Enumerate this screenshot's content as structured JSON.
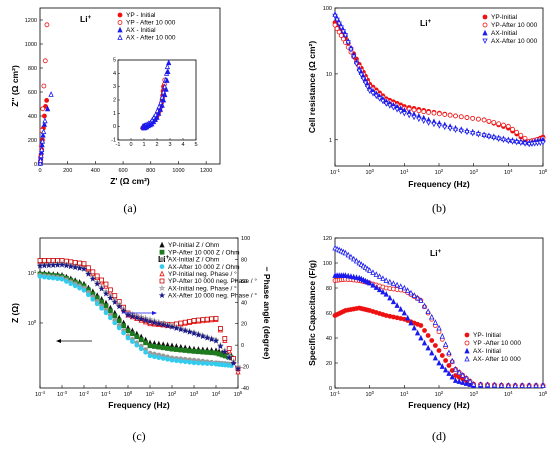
{
  "colors": {
    "red": "#ee1111",
    "blue": "#1a1aee",
    "black": "#111111",
    "green": "#1f7a1f",
    "gray": "#9a9a9a",
    "cyan": "#33ccee",
    "navy": "#1a1a8a",
    "darkred": "#cc0000"
  },
  "chart_data": [
    {
      "panel": "(a)",
      "type": "scatter",
      "ion_label": "Li",
      "ion_superscript": "+",
      "xlabel": "Z' (Ω cm²)",
      "ylabel": "Z'' (Ω cm²)",
      "xlim": [
        0,
        1300
      ],
      "ylim": [
        0,
        1300
      ],
      "xticks": [
        0,
        200,
        400,
        600,
        800,
        1000,
        1200
      ],
      "yticks": [
        0,
        200,
        400,
        600,
        800,
        1000,
        1200
      ],
      "legend_position": "top-left",
      "series": [
        {
          "name": "YP - Initial",
          "marker": "circle-filled",
          "color": "red",
          "x": [
            1,
            2,
            3,
            5,
            8,
            12,
            18,
            25,
            32,
            40,
            48
          ],
          "y": [
            5,
            10,
            25,
            50,
            80,
            120,
            200,
            300,
            400,
            480,
            530
          ]
        },
        {
          "name": "YP - After 10 000",
          "marker": "circle-open",
          "color": "red",
          "x": [
            2,
            5,
            9,
            14,
            20,
            28,
            38,
            50
          ],
          "y": [
            10,
            60,
            150,
            280,
            460,
            650,
            860,
            1160
          ]
        },
        {
          "name": "AX - Initial",
          "marker": "triangle-filled",
          "color": "blue",
          "x": [
            1,
            3,
            6,
            10,
            15,
            22,
            32,
            55
          ],
          "y": [
            5,
            20,
            50,
            100,
            160,
            240,
            330,
            460
          ]
        },
        {
          "name": "AX - After 10 000",
          "marker": "triangle-open",
          "color": "blue",
          "x": [
            2,
            4,
            8,
            12,
            18,
            26,
            36,
            80
          ],
          "y": [
            8,
            30,
            70,
            120,
            190,
            270,
            360,
            580
          ]
        }
      ],
      "inset": {
        "xlim": [
          -1,
          5
        ],
        "ylim": [
          -1,
          5
        ],
        "xticks": [
          -1,
          0,
          1,
          2,
          3,
          4,
          5
        ],
        "yticks": [
          -1,
          0,
          1,
          2,
          3,
          4,
          5
        ],
        "series": [
          {
            "marker": "circle-open",
            "color": "red",
            "x": [
              1.0,
              1.2,
              1.6,
              2.0,
              2.3,
              2.5,
              2.6
            ],
            "y": [
              0.0,
              0.1,
              0.3,
              0.8,
              1.5,
              2.5,
              3.5
            ]
          },
          {
            "marker": "circle-filled",
            "color": "red",
            "x": [
              0.9,
              1.1,
              1.5,
              1.9,
              2.2,
              2.4,
              2.5
            ],
            "y": [
              -0.1,
              0.0,
              0.2,
              0.6,
              1.2,
              2.0,
              3.0
            ]
          },
          {
            "marker": "triangle-open",
            "color": "blue",
            "x": [
              0.9,
              1.1,
              1.5,
              1.9,
              2.3,
              2.6,
              2.8
            ],
            "y": [
              0.0,
              0.1,
              0.3,
              0.9,
              1.8,
              3.0,
              4.5
            ]
          },
          {
            "marker": "triangle-filled",
            "color": "blue",
            "x": [
              1.0,
              1.2,
              1.6,
              2.0,
              2.4,
              2.7,
              2.9
            ],
            "y": [
              -0.1,
              0.0,
              0.2,
              0.7,
              1.6,
              2.8,
              4.8
            ]
          }
        ]
      },
      "caption": "(a)"
    },
    {
      "panel": "(b)",
      "type": "scatter",
      "ion_label": "Li",
      "ion_superscript": "+",
      "xlabel": "Frequency (Hz)",
      "ylabel": "Cell resistance (Ω cm²)",
      "xscale": "log",
      "yscale": "log",
      "xlim": [
        0.1,
        100000
      ],
      "ylim": [
        0.4,
        100
      ],
      "xticks_exp": [
        -1,
        0,
        1,
        2,
        3,
        4,
        5
      ],
      "yticks": [
        1,
        10,
        100
      ],
      "ytick_labels": [
        "1",
        "10",
        "100"
      ],
      "legend_position": "top-right",
      "series": [
        {
          "name": "YP-Initial",
          "marker": "circle-filled",
          "color": "red",
          "x": [
            0.1,
            0.2,
            0.5,
            1,
            3,
            10,
            50,
            300,
            2000,
            10000,
            40000,
            100000
          ],
          "y": [
            60,
            35,
            14,
            7,
            4.2,
            3.2,
            2.7,
            2.3,
            2.0,
            1.5,
            0.9,
            1.1
          ]
        },
        {
          "name": "YP-After 10 000",
          "marker": "circle-open",
          "color": "red",
          "x": [
            0.1,
            0.2,
            0.5,
            1,
            3,
            10,
            50,
            300,
            2000,
            10000,
            40000,
            100000
          ],
          "y": [
            55,
            30,
            13,
            6.5,
            4.0,
            3.0,
            2.6,
            2.3,
            2.0,
            1.6,
            0.95,
            1.05
          ]
        },
        {
          "name": "AX-Initial",
          "marker": "triangle-filled",
          "color": "blue",
          "x": [
            0.1,
            0.2,
            0.5,
            1,
            3,
            10,
            50,
            300,
            2000,
            10000,
            40000,
            100000
          ],
          "y": [
            80,
            40,
            12,
            6,
            3.8,
            2.8,
            2.0,
            1.5,
            1.2,
            1.0,
            0.9,
            1.0
          ]
        },
        {
          "name": "AX-After 10 000",
          "marker": "triangle-open-down",
          "color": "blue",
          "x": [
            0.1,
            0.2,
            0.5,
            1,
            3,
            10,
            50,
            300,
            2000,
            10000,
            40000,
            100000
          ],
          "y": [
            75,
            38,
            11,
            5.5,
            3.5,
            2.5,
            1.8,
            1.4,
            1.15,
            0.95,
            0.85,
            0.9
          ]
        }
      ],
      "caption": "(b)"
    },
    {
      "panel": "(c)",
      "type": "scatter",
      "ion_label": "Li",
      "ion_superscript": "+",
      "xlabel": "Frequency (Hz)",
      "ylabel": "Z (Ω)",
      "y2label": "− Phase angle (degree)",
      "xscale": "log",
      "yscale": "log",
      "xlim": [
        0.0001,
        100000
      ],
      "ylim": [
        0.05,
        50
      ],
      "y2lim": [
        -40,
        100
      ],
      "xticks_exp": [
        -4,
        -3,
        -2,
        -1,
        0,
        1,
        2,
        3,
        4,
        5
      ],
      "yticks_exp": [
        0,
        1
      ],
      "y2ticks": [
        -40,
        -20,
        0,
        20,
        40,
        60,
        80,
        100
      ],
      "legend_position": "top-right",
      "series": [
        {
          "name": "YP-Initial Z / Ohm",
          "axis": "left",
          "marker": "triangle-filled",
          "color": "black",
          "x": [
            0.0001,
            0.001,
            0.01,
            0.1,
            1,
            10,
            100,
            1000,
            10000,
            50000
          ],
          "y": [
            10,
            9,
            6,
            2.5,
            0.8,
            0.4,
            0.35,
            0.3,
            0.28,
            0.22
          ]
        },
        {
          "name": "YP-After 10 000 Z / Ohm",
          "axis": "left",
          "marker": "square-filled",
          "color": "green",
          "x": [
            0.0001,
            0.001,
            0.01,
            0.1,
            1,
            10,
            100,
            1000,
            10000,
            50000
          ],
          "y": [
            9.5,
            8.5,
            5.5,
            2.2,
            0.7,
            0.35,
            0.3,
            0.27,
            0.25,
            0.2
          ]
        },
        {
          "name": "AX-Initial Z / Ohm",
          "axis": "left",
          "marker": "circle-filled",
          "color": "gray",
          "x": [
            0.0001,
            0.001,
            0.01,
            0.1,
            1,
            10,
            100,
            1000,
            10000,
            50000
          ],
          "y": [
            9,
            8,
            5,
            1.8,
            0.55,
            0.25,
            0.2,
            0.18,
            0.16,
            0.15
          ]
        },
        {
          "name": "AX-After 10 000 Z / Ohm",
          "axis": "left",
          "marker": "circle-filled",
          "color": "cyan",
          "x": [
            0.0001,
            0.001,
            0.01,
            0.1,
            1,
            10,
            100,
            1000,
            10000,
            50000
          ],
          "y": [
            8.5,
            7.5,
            4.5,
            1.6,
            0.5,
            0.22,
            0.18,
            0.16,
            0.15,
            0.14
          ]
        },
        {
          "name": "YP-Initial neg. Phase / °",
          "axis": "right",
          "marker": "triangle-open",
          "color": "red",
          "x": [
            0.0001,
            0.001,
            0.01,
            0.1,
            1,
            10,
            100,
            1000,
            10000,
            100000
          ],
          "y": [
            78,
            78,
            75,
            55,
            28,
            20,
            18,
            22,
            24,
            -25
          ]
        },
        {
          "name": "YP-After 10 000 neg. Phase / °",
          "axis": "right",
          "marker": "square-open",
          "color": "darkred",
          "x": [
            0.0001,
            0.001,
            0.01,
            0.1,
            1,
            10,
            100,
            1000,
            10000,
            100000
          ],
          "y": [
            79,
            79,
            76,
            57,
            30,
            21,
            19,
            23,
            25,
            -22
          ]
        },
        {
          "name": "AX-Initial neg. Phase / °",
          "axis": "right",
          "marker": "star-open",
          "color": "gray",
          "x": [
            0.0001,
            0.001,
            0.01,
            0.1,
            1,
            10,
            100,
            1000,
            10000,
            100000
          ],
          "y": [
            75,
            76,
            72,
            50,
            30,
            24,
            18,
            12,
            5,
            -20
          ]
        },
        {
          "name": "AX-After 10 000 neg. Phase / °",
          "axis": "right",
          "marker": "star-filled",
          "color": "navy",
          "x": [
            0.0001,
            0.001,
            0.01,
            0.1,
            1,
            10,
            100,
            1000,
            10000,
            100000
          ],
          "y": [
            74,
            75,
            71,
            48,
            28,
            22,
            17,
            11,
            4,
            -22
          ]
        }
      ],
      "caption": "(c)"
    },
    {
      "panel": "(d)",
      "type": "scatter",
      "ion_label": "Li",
      "ion_superscript": "+",
      "xlabel": "Frequency (Hz)",
      "ylabel": "Specific Capacitance (F/g)",
      "xscale": "log",
      "xlim": [
        0.1,
        100000
      ],
      "ylim": [
        0,
        120
      ],
      "xticks_exp": [
        -1,
        0,
        1,
        2,
        3,
        4,
        5
      ],
      "yticks": [
        0,
        20,
        40,
        60,
        80,
        100,
        120
      ],
      "legend_position": "center-right",
      "series": [
        {
          "name": "YP- Initial",
          "marker": "circle-filled",
          "color": "red",
          "x": [
            0.1,
            0.2,
            0.5,
            1,
            3,
            10,
            30,
            100,
            300,
            1000,
            10000,
            100000
          ],
          "y": [
            58,
            62,
            64,
            62,
            58,
            55,
            50,
            30,
            10,
            3,
            2,
            2
          ]
        },
        {
          "name": "YP -After 10 000",
          "marker": "circle-open",
          "color": "red",
          "x": [
            0.1,
            0.2,
            0.5,
            1,
            3,
            10,
            30,
            100,
            300,
            1000,
            10000,
            100000
          ],
          "y": [
            86,
            87,
            86,
            84,
            80,
            78,
            70,
            45,
            15,
            3,
            2,
            2
          ]
        },
        {
          "name": "AX- Initial",
          "marker": "triangle-filled",
          "color": "blue",
          "x": [
            0.1,
            0.2,
            0.5,
            1,
            3,
            10,
            30,
            100,
            300,
            1000,
            10000,
            100000
          ],
          "y": [
            90,
            90,
            88,
            84,
            75,
            60,
            40,
            20,
            6,
            2,
            2,
            2
          ]
        },
        {
          "name": "AX- After 10 000",
          "marker": "triangle-open",
          "color": "blue",
          "x": [
            0.1,
            0.2,
            0.5,
            1,
            3,
            10,
            30,
            100,
            300,
            1000,
            10000,
            100000
          ],
          "y": [
            112,
            108,
            100,
            94,
            86,
            80,
            70,
            48,
            15,
            3,
            2,
            2
          ]
        }
      ],
      "caption": "(d)"
    }
  ]
}
